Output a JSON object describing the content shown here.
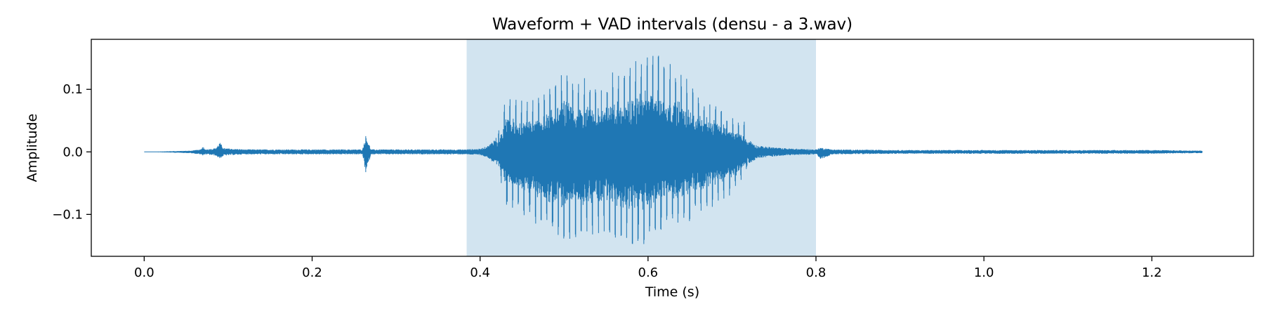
{
  "chart_data": {
    "type": "line",
    "title": "Waveform + VAD intervals (densu - a 3.wav)",
    "xlabel": "Time (s)",
    "ylabel": "Amplitude",
    "xlim": [
      -0.063,
      1.321
    ],
    "ylim": [
      -0.167,
      0.18
    ],
    "xticks": [
      0.0,
      0.2,
      0.4,
      0.6,
      0.8,
      1.0,
      1.2
    ],
    "xtick_labels": [
      "0.0",
      "0.2",
      "0.4",
      "0.6",
      "0.8",
      "1.0",
      "1.2"
    ],
    "yticks": [
      -0.1,
      0.0,
      0.1
    ],
    "ytick_labels": [
      "−0.1",
      "0.0",
      "0.1"
    ],
    "grid": false,
    "colors": {
      "waveform": "#1f77b4",
      "vad": "#1f77b4"
    },
    "vad_intervals": [
      {
        "start": 0.384,
        "end": 0.8
      }
    ],
    "series": [
      {
        "duration": 1.26,
        "envelope_times": [
          0.0,
          0.055,
          0.06,
          0.068,
          0.07,
          0.072,
          0.085,
          0.09,
          0.095,
          0.12,
          0.26,
          0.264,
          0.27,
          0.3,
          0.38,
          0.4,
          0.41,
          0.42,
          0.425,
          0.43,
          0.44,
          0.46,
          0.48,
          0.5,
          0.52,
          0.54,
          0.56,
          0.58,
          0.6,
          0.62,
          0.64,
          0.66,
          0.68,
          0.7,
          0.715,
          0.72,
          0.73,
          0.76,
          0.8,
          0.805,
          0.82,
          0.9,
          1.0,
          1.1,
          1.2,
          1.26
        ],
        "envelope_pos": [
          0.0,
          0.002,
          0.003,
          0.004,
          0.009,
          0.004,
          0.006,
          0.015,
          0.006,
          0.004,
          0.004,
          0.027,
          0.004,
          0.004,
          0.004,
          0.005,
          0.01,
          0.025,
          0.05,
          0.09,
          0.085,
          0.08,
          0.1,
          0.13,
          0.12,
          0.12,
          0.13,
          0.14,
          0.17,
          0.15,
          0.13,
          0.09,
          0.085,
          0.055,
          0.05,
          0.02,
          0.01,
          0.006,
          0.004,
          0.007,
          0.004,
          0.003,
          0.003,
          0.003,
          0.003,
          0.002
        ],
        "envelope_neg": [
          0.0,
          0.002,
          0.003,
          0.004,
          0.007,
          0.004,
          0.006,
          0.011,
          0.006,
          0.004,
          0.004,
          0.036,
          0.004,
          0.004,
          0.004,
          0.005,
          0.01,
          0.025,
          0.05,
          0.085,
          0.09,
          0.11,
          0.13,
          0.148,
          0.145,
          0.13,
          0.14,
          0.148,
          0.15,
          0.13,
          0.12,
          0.105,
          0.09,
          0.07,
          0.04,
          0.02,
          0.01,
          0.006,
          0.004,
          0.012,
          0.004,
          0.003,
          0.003,
          0.003,
          0.003,
          0.002
        ]
      }
    ]
  }
}
